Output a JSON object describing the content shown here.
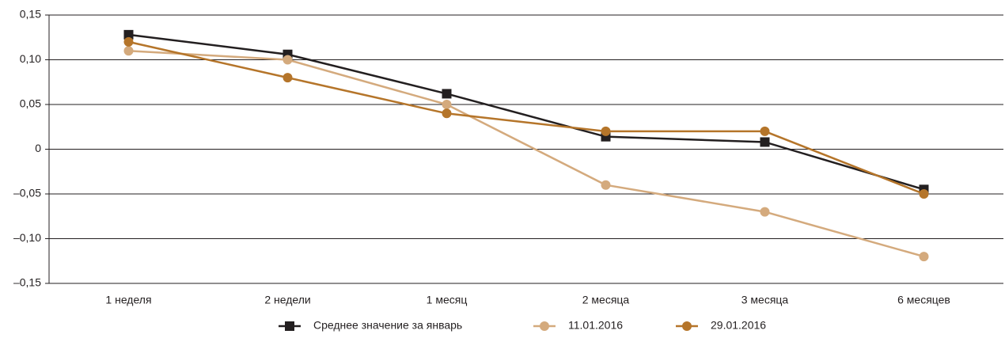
{
  "chart_data": {
    "type": "line",
    "categories": [
      "1 неделя",
      "2 недели",
      "1 месяц",
      "2 месяца",
      "3 месяца",
      "6 месяцев"
    ],
    "series": [
      {
        "name": "Среднее значение за январь",
        "color": "#231f20",
        "marker": "square",
        "values": [
          0.128,
          0.106,
          0.062,
          0.014,
          0.008,
          -0.045
        ]
      },
      {
        "name": "11.01.2016",
        "color": "#d4aa7d",
        "marker": "circle",
        "values": [
          0.11,
          0.1,
          0.05,
          -0.04,
          -0.07,
          -0.12
        ]
      },
      {
        "name": "29.01.2016",
        "color": "#b5752a",
        "marker": "circle",
        "values": [
          0.12,
          0.08,
          0.04,
          0.02,
          0.02,
          -0.05
        ]
      }
    ],
    "ylim": [
      -0.15,
      0.15
    ],
    "yticks": [
      {
        "value": 0.15,
        "label": "0,15"
      },
      {
        "value": 0.1,
        "label": "0,10"
      },
      {
        "value": 0.05,
        "label": "0,05"
      },
      0,
      {
        "value": -0.05,
        "label": "–0,05"
      },
      {
        "value": -0.1,
        "label": "–0,10"
      },
      {
        "value": -0.15,
        "label": "–0,15"
      }
    ],
    "grid": true,
    "legend": "bottom"
  }
}
